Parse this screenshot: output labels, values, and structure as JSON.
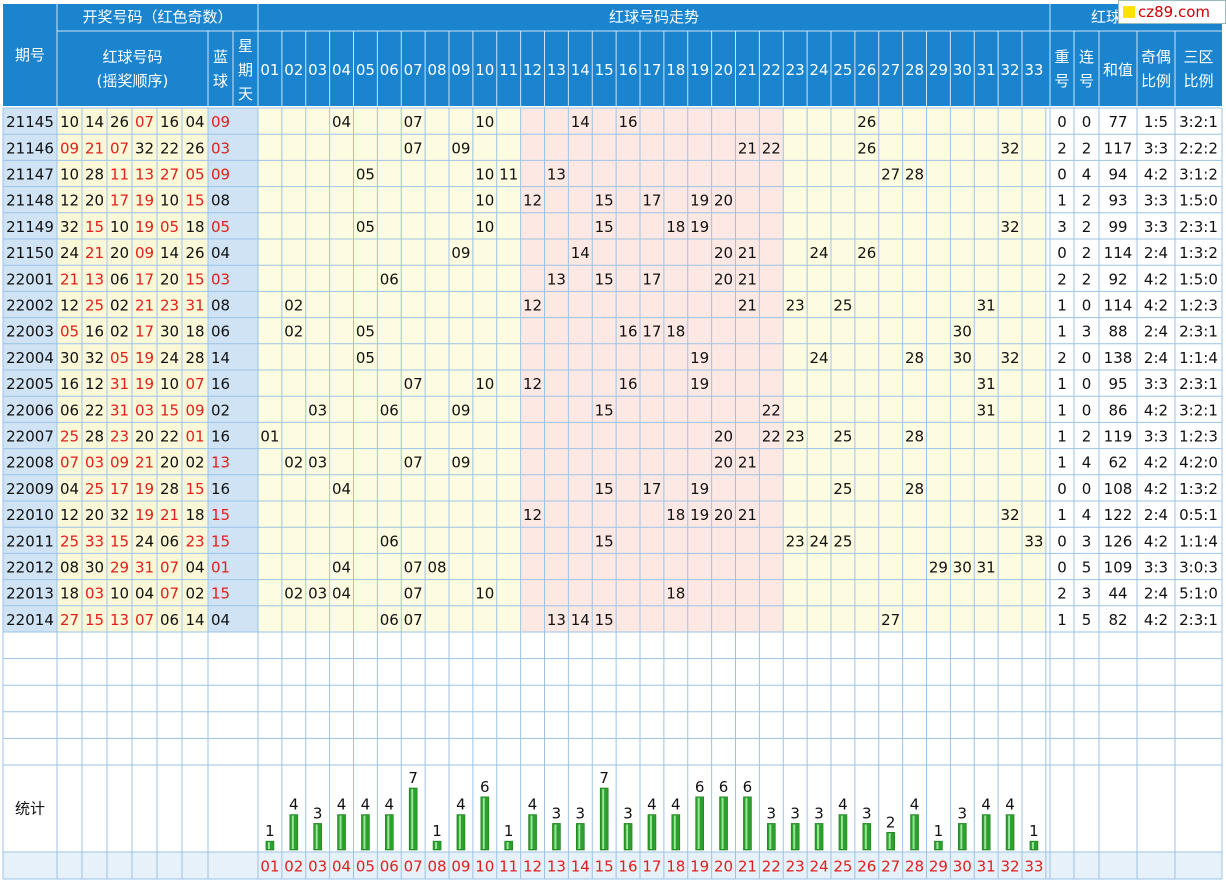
{
  "header": {
    "period_label": "期号",
    "draw_group_label": "开奖号码（红色奇数）",
    "red_order_label_1": "红球号码",
    "red_order_label_2": "(摇奖顺序)",
    "blue_label": "蓝球",
    "weekday_label": "星期天",
    "trend_label": "红球号码走势",
    "analysis_label": "红球号码分析",
    "repeat_label": "重号",
    "consec_label": "连号",
    "sum_label": "和值",
    "oddeven_label": "奇偶比例",
    "zone_label": "三区比例"
  },
  "stats_label": "统计",
  "watermark": "cz89.com",
  "colors": {
    "header_bg": "#1a84cf",
    "header_text": "#ffffff",
    "period_col_bg": "#cfe3f4",
    "red_cells_bg": "#fbf8d8",
    "blue_cells_bg": "#cfe3f4",
    "zone1_bg": "#fefce0",
    "zone2_bg": "#fde8e4",
    "zone3_bg": "#fefce0",
    "odd_red": "#e0201c",
    "bar_green": "#2ca02c",
    "grid_line": "#9cc3e6"
  },
  "numbers": [
    "01",
    "02",
    "03",
    "04",
    "05",
    "06",
    "07",
    "08",
    "09",
    "10",
    "11",
    "12",
    "13",
    "14",
    "15",
    "16",
    "17",
    "18",
    "19",
    "20",
    "21",
    "22",
    "23",
    "24",
    "25",
    "26",
    "27",
    "28",
    "29",
    "30",
    "31",
    "32",
    "33"
  ],
  "rows": [
    {
      "period": "21145",
      "reds": [
        "10",
        "14",
        "26",
        "07",
        "16",
        "04"
      ],
      "blue": "09",
      "repeat": "0",
      "consec": "0",
      "sum": "77",
      "oe": "1:5",
      "zone": "3:2:1"
    },
    {
      "period": "21146",
      "reds": [
        "09",
        "21",
        "07",
        "32",
        "22",
        "26"
      ],
      "blue": "03",
      "repeat": "2",
      "consec": "2",
      "sum": "117",
      "oe": "3:3",
      "zone": "2:2:2"
    },
    {
      "period": "21147",
      "reds": [
        "10",
        "28",
        "11",
        "13",
        "27",
        "05"
      ],
      "blue": "09",
      "repeat": "0",
      "consec": "4",
      "sum": "94",
      "oe": "4:2",
      "zone": "3:1:2"
    },
    {
      "period": "21148",
      "reds": [
        "12",
        "20",
        "17",
        "19",
        "10",
        "15"
      ],
      "blue": "08",
      "repeat": "1",
      "consec": "2",
      "sum": "93",
      "oe": "3:3",
      "zone": "1:5:0"
    },
    {
      "period": "21149",
      "reds": [
        "32",
        "15",
        "10",
        "19",
        "05",
        "18"
      ],
      "blue": "05",
      "repeat": "3",
      "consec": "2",
      "sum": "99",
      "oe": "3:3",
      "zone": "2:3:1"
    },
    {
      "period": "21150",
      "reds": [
        "24",
        "21",
        "20",
        "09",
        "14",
        "26"
      ],
      "blue": "04",
      "repeat": "0",
      "consec": "2",
      "sum": "114",
      "oe": "2:4",
      "zone": "1:3:2"
    },
    {
      "period": "22001",
      "reds": [
        "21",
        "13",
        "06",
        "17",
        "20",
        "15"
      ],
      "blue": "03",
      "repeat": "2",
      "consec": "2",
      "sum": "92",
      "oe": "4:2",
      "zone": "1:5:0"
    },
    {
      "period": "22002",
      "reds": [
        "12",
        "25",
        "02",
        "21",
        "23",
        "31"
      ],
      "blue": "08",
      "repeat": "1",
      "consec": "0",
      "sum": "114",
      "oe": "4:2",
      "zone": "1:2:3"
    },
    {
      "period": "22003",
      "reds": [
        "05",
        "16",
        "02",
        "17",
        "30",
        "18"
      ],
      "blue": "06",
      "repeat": "1",
      "consec": "3",
      "sum": "88",
      "oe": "2:4",
      "zone": "2:3:1"
    },
    {
      "period": "22004",
      "reds": [
        "30",
        "32",
        "05",
        "19",
        "24",
        "28"
      ],
      "blue": "14",
      "repeat": "2",
      "consec": "0",
      "sum": "138",
      "oe": "2:4",
      "zone": "1:1:4"
    },
    {
      "period": "22005",
      "reds": [
        "16",
        "12",
        "31",
        "19",
        "10",
        "07"
      ],
      "blue": "16",
      "repeat": "1",
      "consec": "0",
      "sum": "95",
      "oe": "3:3",
      "zone": "2:3:1"
    },
    {
      "period": "22006",
      "reds": [
        "06",
        "22",
        "31",
        "03",
        "15",
        "09"
      ],
      "blue": "02",
      "repeat": "1",
      "consec": "0",
      "sum": "86",
      "oe": "4:2",
      "zone": "3:2:1"
    },
    {
      "period": "22007",
      "reds": [
        "25",
        "28",
        "23",
        "20",
        "22",
        "01"
      ],
      "blue": "16",
      "repeat": "1",
      "consec": "2",
      "sum": "119",
      "oe": "3:3",
      "zone": "1:2:3"
    },
    {
      "period": "22008",
      "reds": [
        "07",
        "03",
        "09",
        "21",
        "20",
        "02"
      ],
      "blue": "13",
      "repeat": "1",
      "consec": "4",
      "sum": "62",
      "oe": "4:2",
      "zone": "4:2:0"
    },
    {
      "period": "22009",
      "reds": [
        "04",
        "25",
        "17",
        "19",
        "28",
        "15"
      ],
      "blue": "16",
      "repeat": "0",
      "consec": "0",
      "sum": "108",
      "oe": "4:2",
      "zone": "1:3:2"
    },
    {
      "period": "22010",
      "reds": [
        "12",
        "20",
        "32",
        "19",
        "21",
        "18"
      ],
      "blue": "15",
      "repeat": "1",
      "consec": "4",
      "sum": "122",
      "oe": "2:4",
      "zone": "0:5:1"
    },
    {
      "period": "22011",
      "reds": [
        "25",
        "33",
        "15",
        "24",
        "06",
        "23"
      ],
      "blue": "15",
      "repeat": "0",
      "consec": "3",
      "sum": "126",
      "oe": "4:2",
      "zone": "1:1:4"
    },
    {
      "period": "22012",
      "reds": [
        "08",
        "30",
        "29",
        "31",
        "07",
        "04"
      ],
      "blue": "01",
      "repeat": "0",
      "consec": "5",
      "sum": "109",
      "oe": "3:3",
      "zone": "3:0:3"
    },
    {
      "period": "22013",
      "reds": [
        "18",
        "03",
        "10",
        "04",
        "07",
        "02"
      ],
      "blue": "15",
      "repeat": "2",
      "consec": "3",
      "sum": "44",
      "oe": "2:4",
      "zone": "5:1:0"
    },
    {
      "period": "22014",
      "reds": [
        "27",
        "15",
        "13",
        "07",
        "06",
        "14"
      ],
      "blue": "04",
      "repeat": "1",
      "consec": "5",
      "sum": "82",
      "oe": "4:2",
      "zone": "2:3:1"
    }
  ],
  "chart_data": {
    "type": "bar",
    "categories": [
      "01",
      "02",
      "03",
      "04",
      "05",
      "06",
      "07",
      "08",
      "09",
      "10",
      "11",
      "12",
      "13",
      "14",
      "15",
      "16",
      "17",
      "18",
      "19",
      "20",
      "21",
      "22",
      "23",
      "24",
      "25",
      "26",
      "27",
      "28",
      "29",
      "30",
      "31",
      "32",
      "33"
    ],
    "values": [
      1,
      4,
      3,
      4,
      4,
      4,
      7,
      1,
      4,
      6,
      1,
      4,
      3,
      3,
      7,
      3,
      4,
      4,
      6,
      6,
      6,
      3,
      3,
      3,
      4,
      3,
      2,
      4,
      1,
      3,
      4,
      4,
      1
    ],
    "ylim": [
      0,
      7
    ]
  }
}
